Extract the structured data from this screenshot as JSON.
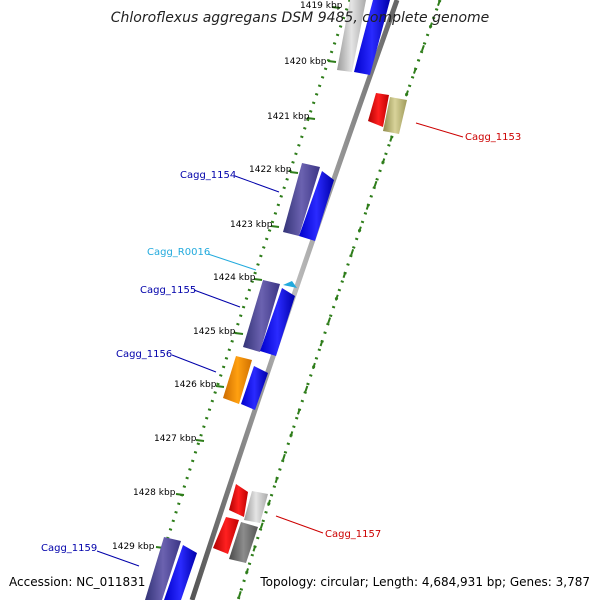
{
  "title": "Chloroflexus aggregans DSM 9485, complete genome",
  "footer": {
    "accession": "Accession: NC_011831",
    "topology": "Topology: circular; Length: 4,684,931 bp; Genes: 3,787"
  },
  "colors": {
    "backbone": "#888888",
    "tick": "#2e7d1a",
    "forward_cds": "#0000ff",
    "reverse_cds": "#ff0000",
    "orange_cds": "#ff8c00",
    "olive_cds": "#bdb76b",
    "gray_cds": "#a9a9a9",
    "label_blue": "#0000aa",
    "label_cyan": "#22aadd",
    "label_red": "#cc0000"
  },
  "ticks": [
    "1419 kbp",
    "1420 kbp",
    "1421 kbp",
    "1422 kbp",
    "1423 kbp",
    "1424 kbp",
    "1425 kbp",
    "1426 kbp",
    "1427 kbp",
    "1428 kbp",
    "1429 kbp"
  ],
  "gene_labels": [
    {
      "text": "Cagg_1153",
      "color": "red"
    },
    {
      "text": "Cagg_1154",
      "color": "blue"
    },
    {
      "text": "Cagg_R0016",
      "color": "cyan"
    },
    {
      "text": "Cagg_1155",
      "color": "blue"
    },
    {
      "text": "Cagg_1156",
      "color": "blue"
    },
    {
      "text": "Cagg_1157",
      "color": "red"
    },
    {
      "text": "Cagg_1159",
      "color": "blue"
    }
  ]
}
